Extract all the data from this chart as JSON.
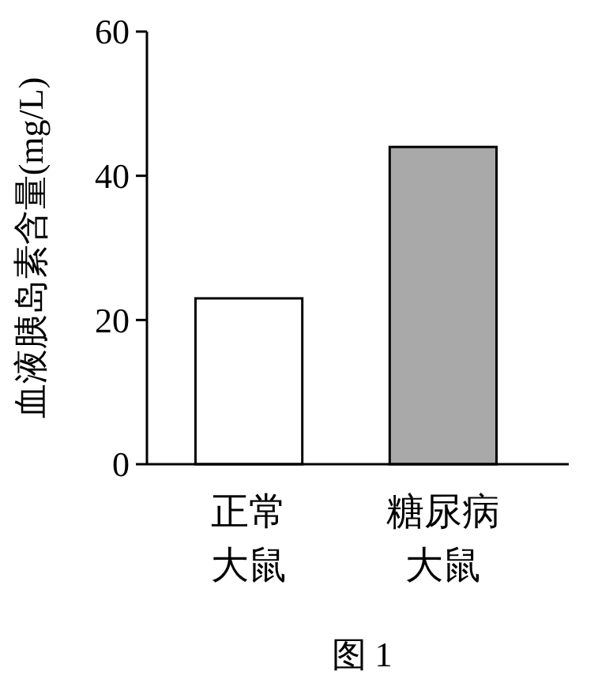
{
  "chart_data": {
    "type": "bar",
    "title": "图 1",
    "ylabel": "血液胰岛素含量(mg/L)",
    "categories": [
      "正常大鼠",
      "糖尿病大鼠"
    ],
    "values": [
      23,
      44
    ],
    "colors": [
      "#ffffff",
      "#a9a9a9"
    ],
    "ylim": [
      0,
      60
    ],
    "yticks": [
      0,
      20,
      40,
      60
    ],
    "grid": false
  }
}
